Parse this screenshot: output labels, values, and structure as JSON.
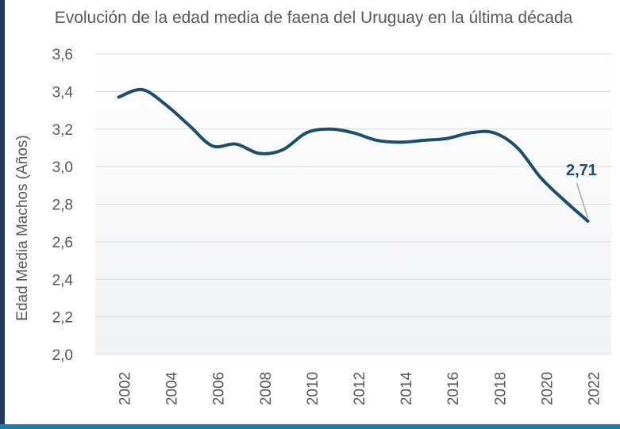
{
  "chart_data": {
    "type": "line",
    "title": "Evolución de la edad media de faena del Uruguay en la última década",
    "ylabel": "Edad Media Machos (Años)",
    "xlabel": "",
    "ylim": [
      2.0,
      3.6
    ],
    "yticks": [
      "2,0",
      "2,2",
      "2,4",
      "2,6",
      "2,8",
      "3,0",
      "3,2",
      "3,4",
      "3,6"
    ],
    "ytick_values": [
      2.0,
      2.2,
      2.4,
      2.6,
      2.8,
      3.0,
      3.2,
      3.4,
      3.6
    ],
    "xticks": [
      "2002",
      "2004",
      "2006",
      "2008",
      "2010",
      "2012",
      "2014",
      "2016",
      "2018",
      "2020",
      "2022"
    ],
    "grid": true,
    "legend": "none",
    "series": [
      {
        "color": "#1f4e6b",
        "x": [
          2002,
          2003,
          2004,
          2005,
          2006,
          2007,
          2008,
          2009,
          2010,
          2011,
          2012,
          2013,
          2014,
          2015,
          2016,
          2017,
          2018,
          2019,
          2020,
          2021,
          2022
        ],
        "values": [
          3.37,
          3.41,
          3.33,
          3.22,
          3.11,
          3.12,
          3.07,
          3.09,
          3.18,
          3.2,
          3.18,
          3.14,
          3.13,
          3.14,
          3.15,
          3.18,
          3.18,
          3.1,
          2.94,
          2.82,
          2.71
        ]
      }
    ],
    "data_label": {
      "x": 2022,
      "value": 2.71,
      "text": "2,71"
    }
  }
}
